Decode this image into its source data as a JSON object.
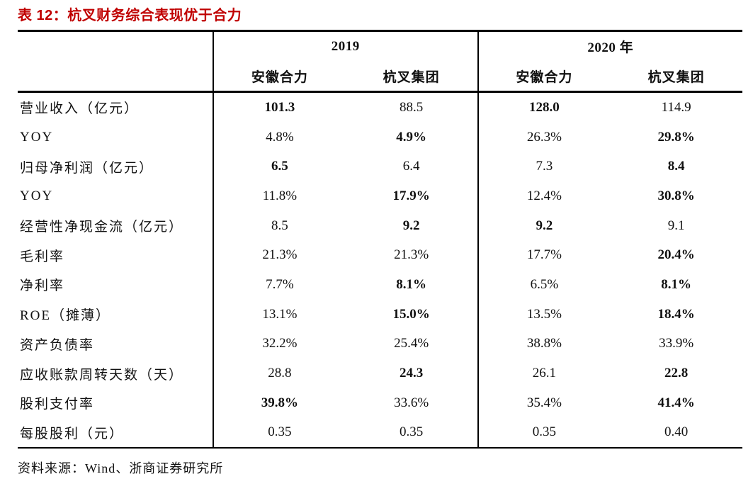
{
  "title": "表 12：杭叉财务综合表现优于合力",
  "colors": {
    "title_red": "#c00000",
    "text": "#111111",
    "border": "#000000",
    "background": "#ffffff"
  },
  "table": {
    "year_groups": [
      "2019",
      "2020 年"
    ],
    "company_headers": [
      "安徽合力",
      "杭叉集团",
      "安徽合力",
      "杭叉集团"
    ],
    "rows": [
      {
        "label": "营业收入（亿元）",
        "values": [
          "101.3",
          "88.5",
          "128.0",
          "114.9"
        ],
        "bold": [
          true,
          false,
          true,
          false
        ]
      },
      {
        "label": "YOY",
        "values": [
          "4.8%",
          "4.9%",
          "26.3%",
          "29.8%"
        ],
        "bold": [
          false,
          true,
          false,
          true
        ]
      },
      {
        "label": "归母净利润（亿元）",
        "values": [
          "6.5",
          "6.4",
          "7.3",
          "8.4"
        ],
        "bold": [
          true,
          false,
          false,
          true
        ]
      },
      {
        "label": "YOY",
        "values": [
          "11.8%",
          "17.9%",
          "12.4%",
          "30.8%"
        ],
        "bold": [
          false,
          true,
          false,
          true
        ]
      },
      {
        "label": "经营性净现金流（亿元）",
        "values": [
          "8.5",
          "9.2",
          "9.2",
          "9.1"
        ],
        "bold": [
          false,
          true,
          true,
          false
        ]
      },
      {
        "label": "毛利率",
        "values": [
          "21.3%",
          "21.3%",
          "17.7%",
          "20.4%"
        ],
        "bold": [
          false,
          false,
          false,
          true
        ]
      },
      {
        "label": "净利率",
        "values": [
          "7.7%",
          "8.1%",
          "6.5%",
          "8.1%"
        ],
        "bold": [
          false,
          true,
          false,
          true
        ]
      },
      {
        "label": "ROE（摊薄）",
        "values": [
          "13.1%",
          "15.0%",
          "13.5%",
          "18.4%"
        ],
        "bold": [
          false,
          true,
          false,
          true
        ]
      },
      {
        "label": "资产负债率",
        "values": [
          "32.2%",
          "25.4%",
          "38.8%",
          "33.9%"
        ],
        "bold": [
          false,
          false,
          false,
          false
        ]
      },
      {
        "label": "应收账款周转天数（天）",
        "values": [
          "28.8",
          "24.3",
          "26.1",
          "22.8"
        ],
        "bold": [
          false,
          true,
          false,
          true
        ]
      },
      {
        "label": "股利支付率",
        "values": [
          "39.8%",
          "33.6%",
          "35.4%",
          "41.4%"
        ],
        "bold": [
          true,
          false,
          false,
          true
        ]
      },
      {
        "label": "每股股利（元）",
        "values": [
          "0.35",
          "0.35",
          "0.35",
          "0.40"
        ],
        "bold": [
          false,
          false,
          false,
          false
        ]
      }
    ]
  },
  "footer": {
    "source": "资料来源：Wind、浙商证券研究所"
  }
}
